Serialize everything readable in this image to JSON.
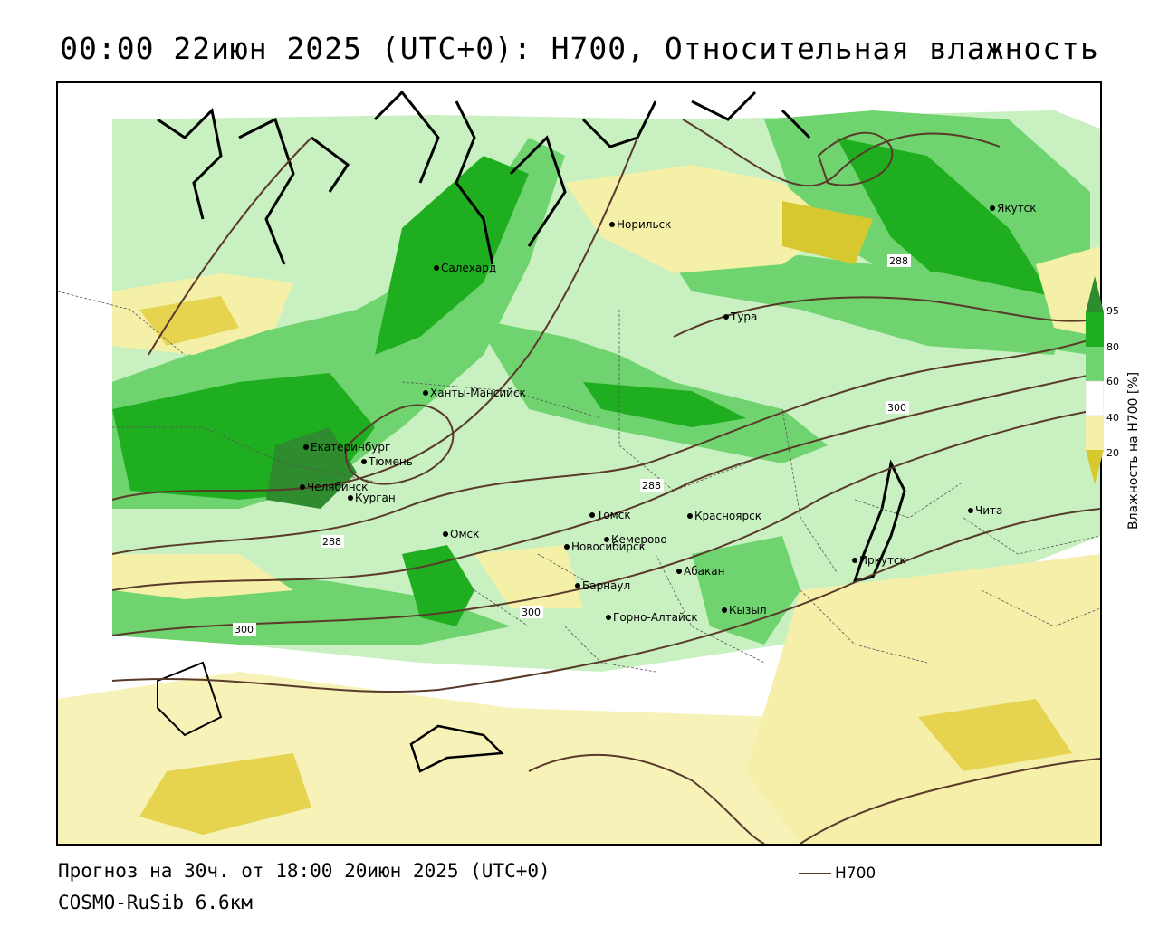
{
  "title": "00:00 22июн 2025 (UTC+0): H700, Относительная влажность",
  "footer": {
    "forecast": "Прогноз на 30ч. от 18:00 20июн 2025 (UTC+0)",
    "model": "COSMO-RuSib 6.6км"
  },
  "legend": {
    "contour_label": "H700",
    "contour_color": "#5a3a2a"
  },
  "colorbar": {
    "title": "Влажность на H700 [%]",
    "ticks": [
      "95",
      "80",
      "60",
      "40",
      "20"
    ],
    "colors": {
      "very_high": "#2e8b2e",
      "high": "#1fae1f",
      "mid_high": "#6fd46f",
      "mid": "#c8f0c0",
      "neutral": "#ffffff",
      "low": "#f5f0a8",
      "very_low": "#d8c830"
    }
  },
  "cities": [
    {
      "name": "Норильск"
    },
    {
      "name": "Якутск"
    },
    {
      "name": "Салехард"
    },
    {
      "name": "Тура"
    },
    {
      "name": "Ханты-Мансийск"
    },
    {
      "name": "Екатеринбург"
    },
    {
      "name": "Тюмень"
    },
    {
      "name": "Челябинск"
    },
    {
      "name": "Курган"
    },
    {
      "name": "Омск"
    },
    {
      "name": "Новосибирск"
    },
    {
      "name": "Томск"
    },
    {
      "name": "Кемерово"
    },
    {
      "name": "Красноярск"
    },
    {
      "name": "Абакан"
    },
    {
      "name": "Барнаул"
    },
    {
      "name": "Горно-Алтайск"
    },
    {
      "name": "Кызыл"
    },
    {
      "name": "Иркутск"
    },
    {
      "name": "Чита"
    }
  ],
  "contour_labels": [
    "288",
    "288",
    "288",
    "300",
    "300",
    "300"
  ]
}
